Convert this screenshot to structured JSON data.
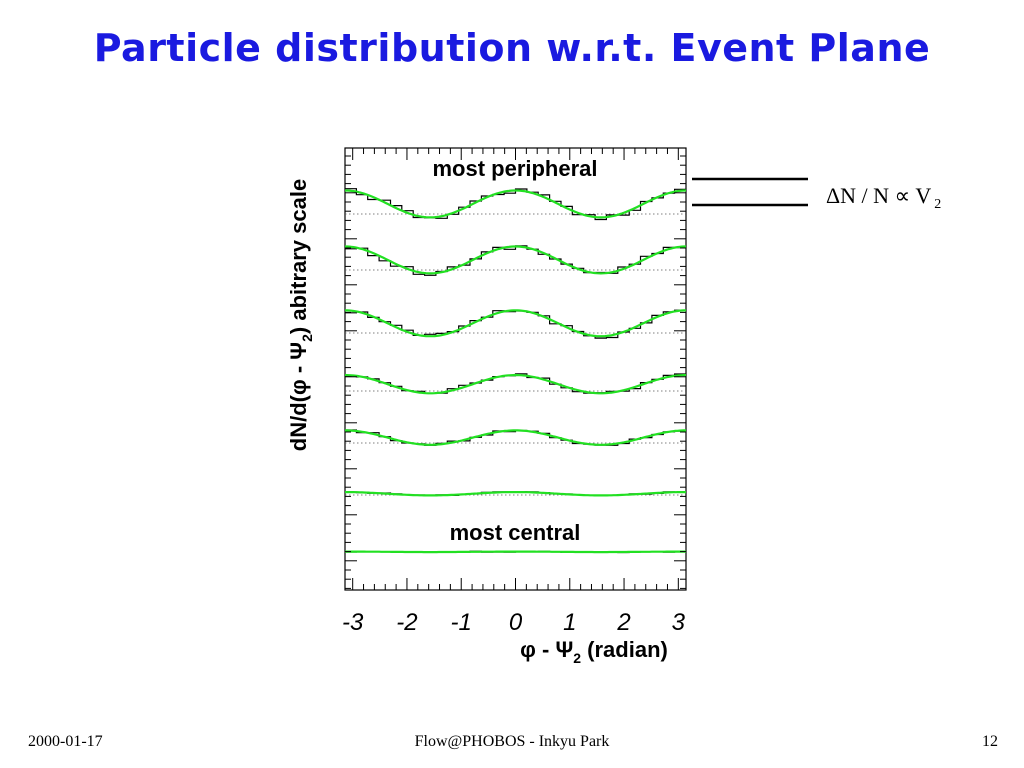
{
  "slide": {
    "title": "Particle distribution w.r.t. Event Plane",
    "footer_date": "2000-01-17",
    "footer_center": "Flow@PHOBOS - Inkyu Park",
    "page_number": "12"
  },
  "formula": {
    "main": "ΔN / N ∝ V",
    "sub": "2"
  },
  "colors": {
    "title": "#1a1ae0",
    "fit_curve": "#22e022",
    "histogram": "#000000"
  },
  "chart_data": {
    "type": "line",
    "x_label": "φ - Ψ2 (radian)",
    "y_label": "dN/d(φ - Ψ2) abitrary scale",
    "x_ticks": [
      "-3",
      "-2",
      "-1",
      "0",
      "1",
      "2",
      "3"
    ],
    "xlim": [
      -3.14159,
      3.14159
    ],
    "y_scale": "arbitrary",
    "grid": "dotted horizontal baselines",
    "annotations": [
      "most peripheral",
      "most central"
    ],
    "series": [
      {
        "label": "most peripheral",
        "amplitude": 0.28
      },
      {
        "amplitude": 0.28
      },
      {
        "amplitude": 0.27
      },
      {
        "amplitude": 0.19
      },
      {
        "amplitude": 0.15
      },
      {
        "amplitude": 0.035
      },
      {
        "label": "most central",
        "amplitude": 0.005
      }
    ]
  }
}
